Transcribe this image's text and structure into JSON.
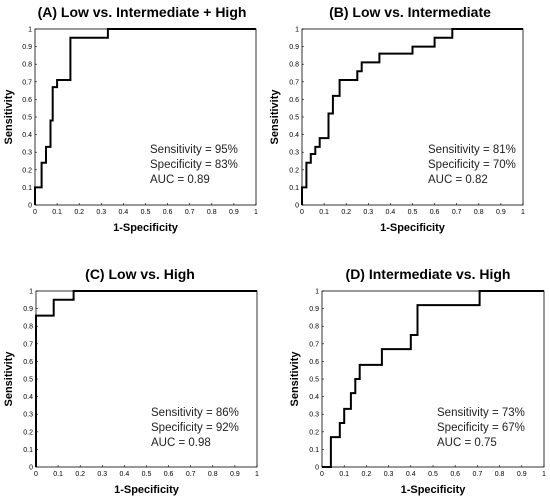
{
  "chart_data": [
    {
      "type": "line",
      "title": "(A) Low vs. Intermediate + High",
      "xlabel": "1-Specificity",
      "ylabel": "Sensitivity",
      "xlim": [
        0,
        1
      ],
      "ylim": [
        0,
        1
      ],
      "ticks": [
        "0",
        "0.1",
        "0.2",
        "0.3",
        "0.4",
        "0.5",
        "0.6",
        "0.7",
        "0.8",
        "0.9",
        "1"
      ],
      "stats": [
        "Sensitivity = 95%",
        "Specificity = 83%",
        "AUC = 0.89"
      ],
      "series": [
        {
          "x": [
            0,
            0,
            0.03,
            0.03,
            0.05,
            0.05,
            0.07,
            0.07,
            0.08,
            0.08,
            0.1,
            0.1,
            0.13,
            0.13,
            0.16,
            0.16,
            0.33,
            0.33,
            1
          ],
          "y": [
            0,
            0.1,
            0.1,
            0.24,
            0.24,
            0.33,
            0.33,
            0.48,
            0.48,
            0.67,
            0.67,
            0.71,
            0.71,
            0.71,
            0.71,
            0.95,
            0.95,
            1,
            1
          ]
        }
      ]
    },
    {
      "type": "line",
      "title": "(B) Low vs. Intermediate",
      "xlabel": "1-Specificity",
      "ylabel": "Sensitivity",
      "xlim": [
        0,
        1
      ],
      "ylim": [
        0,
        1
      ],
      "ticks": [
        "0",
        "0.1",
        "0.2",
        "0.3",
        "0.4",
        "0.5",
        "0.6",
        "0.7",
        "0.8",
        "0.9",
        "1"
      ],
      "stats": [
        "Sensitivity = 81%",
        "Specificity = 70%",
        "AUC = 0.82"
      ],
      "series": [
        {
          "x": [
            0,
            0,
            0.02,
            0.02,
            0.04,
            0.04,
            0.06,
            0.06,
            0.08,
            0.08,
            0.12,
            0.12,
            0.14,
            0.14,
            0.17,
            0.17,
            0.2,
            0.2,
            0.25,
            0.25,
            0.27,
            0.27,
            0.35,
            0.35,
            0.5,
            0.5,
            0.6,
            0.6,
            0.68,
            0.68,
            1
          ],
          "y": [
            0,
            0.1,
            0.1,
            0.24,
            0.24,
            0.29,
            0.29,
            0.33,
            0.33,
            0.38,
            0.38,
            0.52,
            0.52,
            0.62,
            0.62,
            0.71,
            0.71,
            0.71,
            0.71,
            0.76,
            0.76,
            0.81,
            0.81,
            0.86,
            0.86,
            0.9,
            0.9,
            0.95,
            0.95,
            1,
            1
          ]
        }
      ]
    },
    {
      "type": "line",
      "title": "(C) Low vs. High",
      "xlabel": "1-Specificity",
      "ylabel": "Sensitivity",
      "xlim": [
        0,
        1
      ],
      "ylim": [
        0,
        1
      ],
      "ticks": [
        "0",
        "0.1",
        "0.2",
        "0.3",
        "0.4",
        "0.5",
        "0.6",
        "0.7",
        "0.8",
        "0.9",
        "1"
      ],
      "stats": [
        "Sensitivity = 86%",
        "Specificity = 92%",
        "AUC = 0.98"
      ],
      "series": [
        {
          "x": [
            0,
            0,
            0.08,
            0.08,
            0.17,
            0.17,
            1
          ],
          "y": [
            0,
            0.86,
            0.86,
            0.95,
            0.95,
            1,
            1
          ]
        }
      ]
    },
    {
      "type": "line",
      "title": "(D) Intermediate vs. High",
      "xlabel": "1-Specificity",
      "ylabel": "Sensitivity",
      "xlim": [
        0,
        1
      ],
      "ylim": [
        0,
        1
      ],
      "ticks": [
        "0",
        "0.1",
        "0.2",
        "0.3",
        "0.4",
        "0.5",
        "0.6",
        "0.7",
        "0.8",
        "0.9",
        "1"
      ],
      "stats": [
        "Sensitivity = 73%",
        "Specificity = 67%",
        "AUC = 0.75"
      ],
      "series": [
        {
          "x": [
            0,
            0.04,
            0.04,
            0.08,
            0.08,
            0.1,
            0.1,
            0.13,
            0.13,
            0.15,
            0.15,
            0.17,
            0.17,
            0.27,
            0.27,
            0.4,
            0.4,
            0.43,
            0.43,
            0.71,
            0.71,
            1
          ],
          "y": [
            0,
            0,
            0.17,
            0.17,
            0.25,
            0.25,
            0.33,
            0.33,
            0.42,
            0.42,
            0.5,
            0.5,
            0.58,
            0.58,
            0.67,
            0.67,
            0.75,
            0.75,
            0.92,
            0.92,
            1,
            1
          ]
        }
      ]
    }
  ]
}
